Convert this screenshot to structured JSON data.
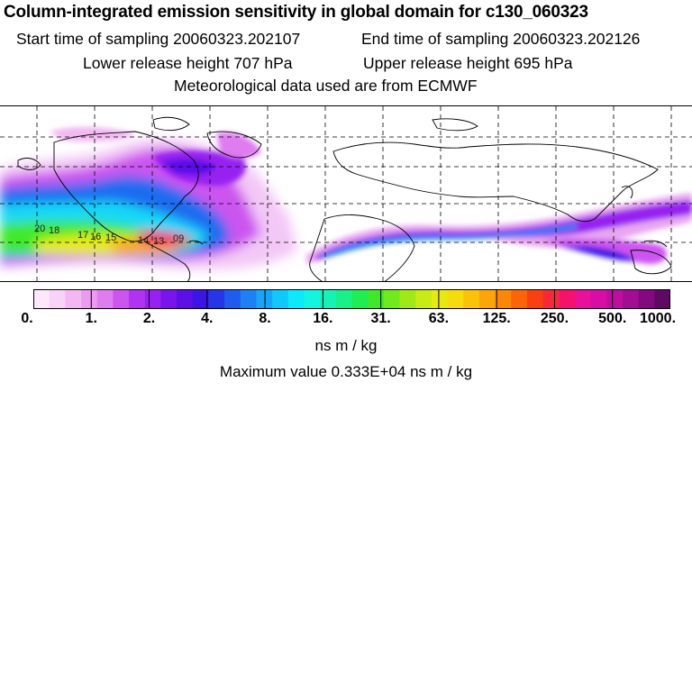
{
  "header": {
    "title": "Column-integrated emission sensitivity in global domain for c130_060323",
    "start_time": "Start time of sampling 20060323.202107",
    "end_time": "End time of sampling 20060323.202126",
    "lower_release": "Lower release height  707 hPa",
    "upper_release": "Upper release height  695 hPa",
    "met_data": "Meteorological data used are from ECMWF"
  },
  "map": {
    "station_labels": [
      "20",
      "18",
      "17",
      "16",
      "15",
      "14",
      "13",
      "09"
    ]
  },
  "colorbar": {
    "tick_labels": [
      "0.",
      "1.",
      "2.",
      "4.",
      "8.",
      "16.",
      "31.",
      "63.",
      "125.",
      "250.",
      "500.",
      "1000."
    ],
    "colors": [
      "#fde8fb",
      "#f9d2f7",
      "#f3b8f2",
      "#eb9bf0",
      "#df7cf0",
      "#cc55f0",
      "#b033f2",
      "#9722f0",
      "#7a14ec",
      "#5b10e8",
      "#3b14e6",
      "#2536e8",
      "#1f5cee",
      "#1e80f4",
      "#19a4f8",
      "#12c8fa",
      "#0ee8fb",
      "#12f5df",
      "#16f2b6",
      "#1aef88",
      "#22ec54",
      "#3fe92a",
      "#72e81e",
      "#a0e81a",
      "#c8ea16",
      "#e6ea12",
      "#f6dc0e",
      "#fbc20c",
      "#fca40a",
      "#fc8608",
      "#fb6408",
      "#f94010",
      "#f72838",
      "#f5126a",
      "#e9109a",
      "#d60ea6",
      "#bd0ea0",
      "#a20d94",
      "#820a7e",
      "#5e0a62"
    ],
    "units": "ns m / kg",
    "max_value": "Maximum value  0.333E+04 ns m / kg"
  }
}
